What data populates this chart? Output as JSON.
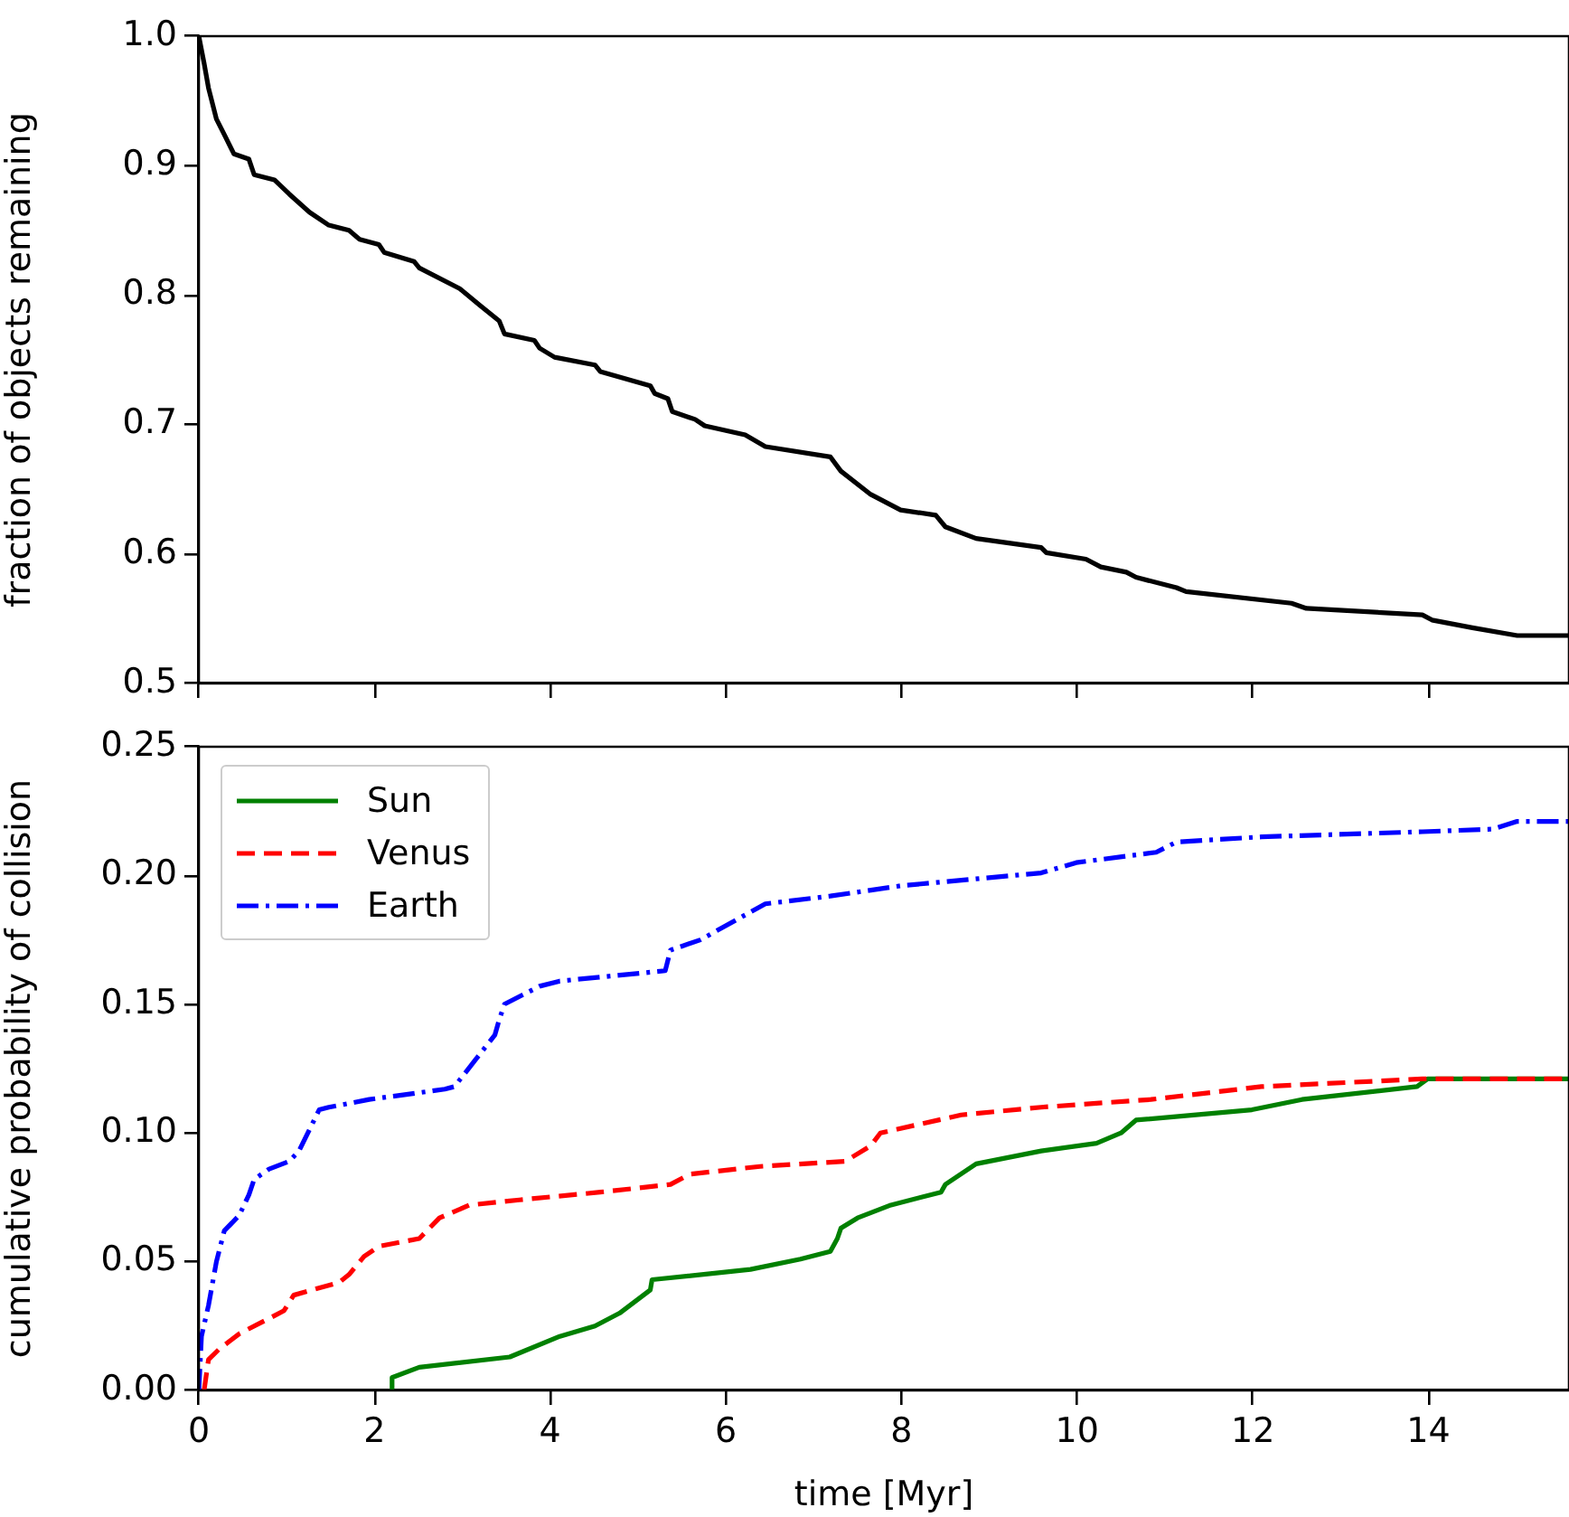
{
  "chart_data": [
    {
      "type": "line",
      "ylabel": "fraction of objects remaining",
      "xlim": [
        0,
        15.6
      ],
      "xticks": [
        0,
        2,
        4,
        6,
        8,
        10,
        12,
        14
      ],
      "ylim": [
        0.5,
        1.0
      ],
      "yticks": [
        0.5,
        0.6,
        0.7,
        0.8,
        0.9,
        {
          "value": 1.0,
          "label": "1.0"
        }
      ],
      "tick_labels": "y",
      "grid": false,
      "legend": false,
      "marker": "none",
      "series": [
        {
          "color": "#000000",
          "line_style": "solid",
          "x": [
            0,
            0.06,
            0.11,
            0.2,
            0.29,
            0.4,
            0.57,
            0.63,
            0.86,
            1.03,
            1.26,
            1.48,
            1.71,
            1.83,
            2.05,
            2.11,
            2.45,
            2.51,
            2.97,
            3.2,
            3.42,
            3.48,
            3.82,
            3.88,
            4.05,
            4.51,
            4.57,
            5.14,
            5.19,
            5.34,
            5.39,
            5.65,
            5.76,
            6.22,
            6.45,
            7.19,
            7.31,
            7.65,
            7.99,
            8.39,
            8.5,
            8.85,
            9.59,
            9.65,
            10.1,
            10.27,
            10.56,
            10.67,
            11.13,
            11.24,
            12.44,
            12.61,
            13.93,
            14.04,
            14.5,
            15.01,
            15.6
          ],
          "values": [
            1.0,
            0.979,
            0.96,
            0.936,
            0.924,
            0.909,
            0.905,
            0.893,
            0.889,
            0.878,
            0.864,
            0.854,
            0.85,
            0.843,
            0.839,
            0.833,
            0.826,
            0.821,
            0.805,
            0.792,
            0.78,
            0.77,
            0.765,
            0.759,
            0.752,
            0.746,
            0.741,
            0.73,
            0.724,
            0.72,
            0.71,
            0.704,
            0.699,
            0.692,
            0.683,
            0.675,
            0.664,
            0.646,
            0.634,
            0.63,
            0.621,
            0.612,
            0.605,
            0.601,
            0.596,
            0.59,
            0.586,
            0.582,
            0.574,
            0.571,
            0.562,
            0.558,
            0.553,
            0.549,
            0.543,
            0.537,
            0.537
          ]
        }
      ]
    },
    {
      "type": "line",
      "xlabel": "time [Myr]",
      "ylabel": "cumulative probability of collision",
      "xlim": [
        0,
        15.6
      ],
      "xticks": [
        0,
        2,
        4,
        6,
        8,
        10,
        12,
        14
      ],
      "ylim": [
        0,
        0.25
      ],
      "yticks": [
        {
          "value": 0,
          "label": "0.00"
        },
        {
          "value": 0.05,
          "label": "0.05"
        },
        {
          "value": 0.1,
          "label": "0.10"
        },
        {
          "value": 0.15,
          "label": "0.15"
        },
        {
          "value": 0.2,
          "label": "0.20"
        },
        {
          "value": 0.25,
          "label": "0.25"
        }
      ],
      "grid": false,
      "legend": "top left",
      "marker": "none",
      "series": [
        {
          "name": "Sun",
          "color": "#008000",
          "line_style": "solid",
          "x": [
            2.2,
            2.2,
            2.51,
            3.54,
            4.11,
            4.51,
            4.79,
            5.14,
            5.16,
            6.28,
            6.85,
            7.19,
            7.27,
            7.31,
            7.5,
            7.88,
            8.45,
            8.5,
            8.85,
            9.59,
            10.22,
            10.5,
            10.67,
            11.99,
            12.56,
            13.87,
            13.99,
            15.6
          ],
          "values": [
            0,
            0.005,
            0.009,
            0.013,
            0.021,
            0.025,
            0.03,
            0.039,
            0.043,
            0.047,
            0.051,
            0.054,
            0.059,
            0.063,
            0.067,
            0.072,
            0.077,
            0.08,
            0.088,
            0.093,
            0.096,
            0.1,
            0.105,
            0.109,
            0.113,
            0.118,
            0.121,
            0.121
          ]
        },
        {
          "name": "Venus",
          "color": "#ff0000",
          "line_style": "dashed",
          "x": [
            0.06,
            0.11,
            0.23,
            0.46,
            0.86,
            0.97,
            1.08,
            1.6,
            1.71,
            1.88,
            2.05,
            2.51,
            2.74,
            3.08,
            3.65,
            4.57,
            5.37,
            5.59,
            6.39,
            7.36,
            7.65,
            7.76,
            8.68,
            9.59,
            10.84,
            12.1,
            13.93,
            15.6
          ],
          "values": [
            0,
            0.012,
            0.016,
            0.022,
            0.029,
            0.031,
            0.037,
            0.042,
            0.045,
            0.052,
            0.056,
            0.059,
            0.067,
            0.072,
            0.074,
            0.077,
            0.08,
            0.084,
            0.087,
            0.089,
            0.095,
            0.1,
            0.107,
            0.11,
            0.113,
            0.118,
            0.121,
            0.121
          ]
        },
        {
          "name": "Earth",
          "color": "#0000ff",
          "line_style": "dashdot",
          "x": [
            0,
            0.03,
            0.11,
            0.2,
            0.29,
            0.46,
            0.57,
            0.63,
            0.8,
            1.03,
            1.14,
            1.37,
            1.48,
            1.94,
            2.8,
            2.91,
            3.14,
            3.37,
            3.42,
            3.48,
            3.88,
            4.11,
            5.31,
            5.37,
            5.71,
            6.45,
            7.19,
            7.99,
            9.59,
            9.99,
            10.9,
            11.13,
            12.1,
            13.93,
            14.73,
            15.01,
            15.6
          ],
          "values": [
            0,
            0.021,
            0.033,
            0.05,
            0.062,
            0.068,
            0.076,
            0.082,
            0.086,
            0.089,
            0.093,
            0.109,
            0.11,
            0.113,
            0.117,
            0.118,
            0.128,
            0.138,
            0.144,
            0.15,
            0.157,
            0.159,
            0.163,
            0.171,
            0.175,
            0.189,
            0.192,
            0.196,
            0.201,
            0.205,
            0.209,
            0.213,
            0.215,
            0.217,
            0.218,
            0.221,
            0.221
          ]
        }
      ]
    }
  ]
}
